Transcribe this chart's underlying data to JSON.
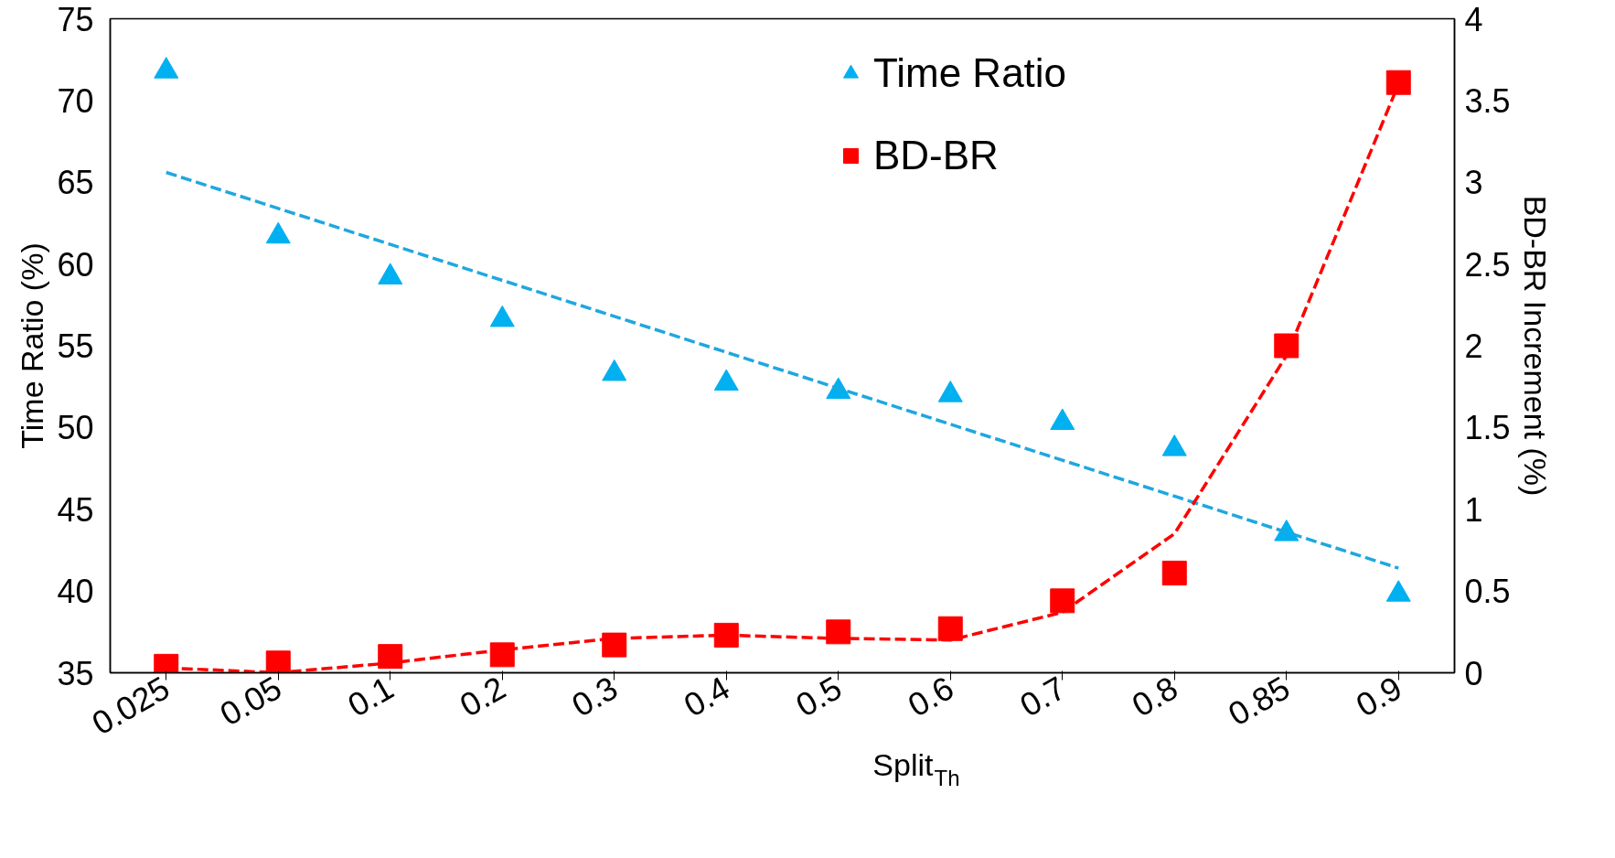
{
  "chart_data": {
    "type": "scatter",
    "categories": [
      "0.025",
      "0.05",
      "0.1",
      "0.2",
      "0.3",
      "0.4",
      "0.5",
      "0.6",
      "0.7",
      "0.8",
      "0.85",
      "0.9"
    ],
    "xlabel": "Split$_{Th}$",
    "ylabel": "Time Ratio (%)",
    "y2label": "BD-BR Increment (%)",
    "ylim": [
      35,
      75
    ],
    "yticks": [
      35,
      40,
      45,
      50,
      55,
      60,
      65,
      70,
      75
    ],
    "y2lim": [
      0,
      4
    ],
    "y2ticks": [
      0,
      0.5,
      1,
      1.5,
      2,
      2.5,
      3,
      3.5,
      4
    ],
    "grid": false,
    "legend": "top right",
    "series": [
      {
        "name": "Time Ratio",
        "color": "#00b0f0",
        "marker": "triangle",
        "values": [
          71.8,
          61.7,
          59.2,
          56.6,
          53.3,
          52.7,
          52.2,
          52.0,
          50.3,
          48.7,
          43.5,
          39.8
        ]
      },
      {
        "name": "BD-BR",
        "color": "#ff0000",
        "marker": "square",
        "axis": "y2",
        "values": [
          0.04,
          0.06,
          0.1,
          0.11,
          0.17,
          0.23,
          0.25,
          0.27,
          0.44,
          0.61,
          2.0,
          3.61
        ]
      },
      {
        "type": "line",
        "color": "#1fa7e0",
        "line_style": "dashed",
        "values": [
          65.6,
          63.4,
          61.2,
          59.0,
          56.8,
          54.6,
          52.4,
          50.2,
          48.0,
          45.8,
          43.6,
          41.4
        ]
      },
      {
        "type": "line",
        "color": "#ff0000",
        "line_style": "dashed",
        "axis": "y2",
        "values": [
          0.03,
          0.0,
          0.06,
          0.14,
          0.21,
          0.23,
          0.21,
          0.2,
          0.37,
          0.85,
          1.94,
          3.6
        ]
      }
    ]
  }
}
